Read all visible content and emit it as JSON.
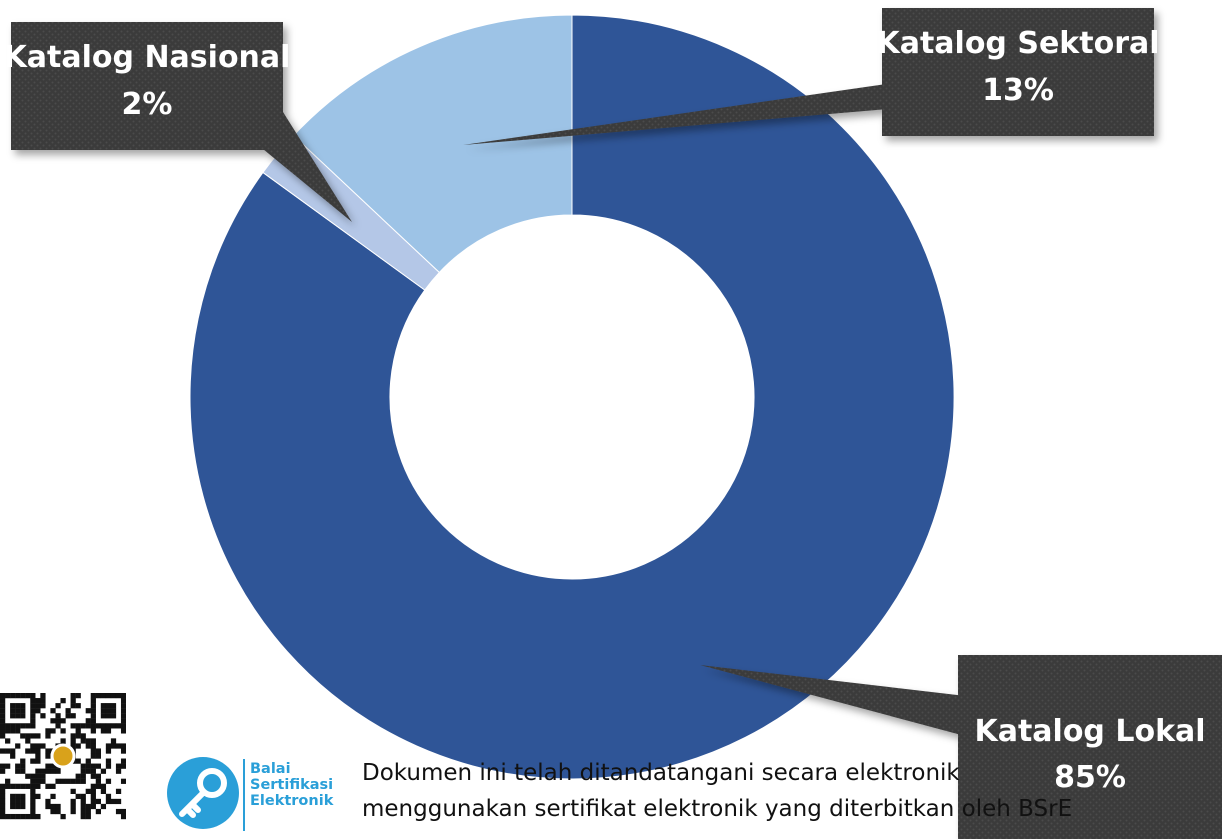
{
  "chart_data": {
    "type": "pie",
    "donut": true,
    "title": "",
    "slices": [
      {
        "label": "Katalog Lokal",
        "value": 85,
        "value_label": "85%",
        "color": "#2f5597"
      },
      {
        "label": "Katalog Nasional",
        "value": 2,
        "value_label": "2%",
        "color": "#b4c7e7"
      },
      {
        "label": "Katalog Sektoral",
        "value": 13,
        "value_label": "13%",
        "color": "#9dc3e6"
      }
    ],
    "legend": "none",
    "data_labels": "callouts"
  },
  "footer": {
    "org_name_lines": [
      "Balai",
      "Sertifikasi",
      "Elektronik"
    ],
    "signature_lines": [
      "Dokumen ini telah ditandatangani secara elektronik",
      "menggunakan sertifikat elektronik yang diterbitkan oleh BSrE"
    ],
    "logo_icon": "key-icon",
    "qr_icon": "qr-code-icon",
    "logo_color": "#2a9fd8"
  }
}
